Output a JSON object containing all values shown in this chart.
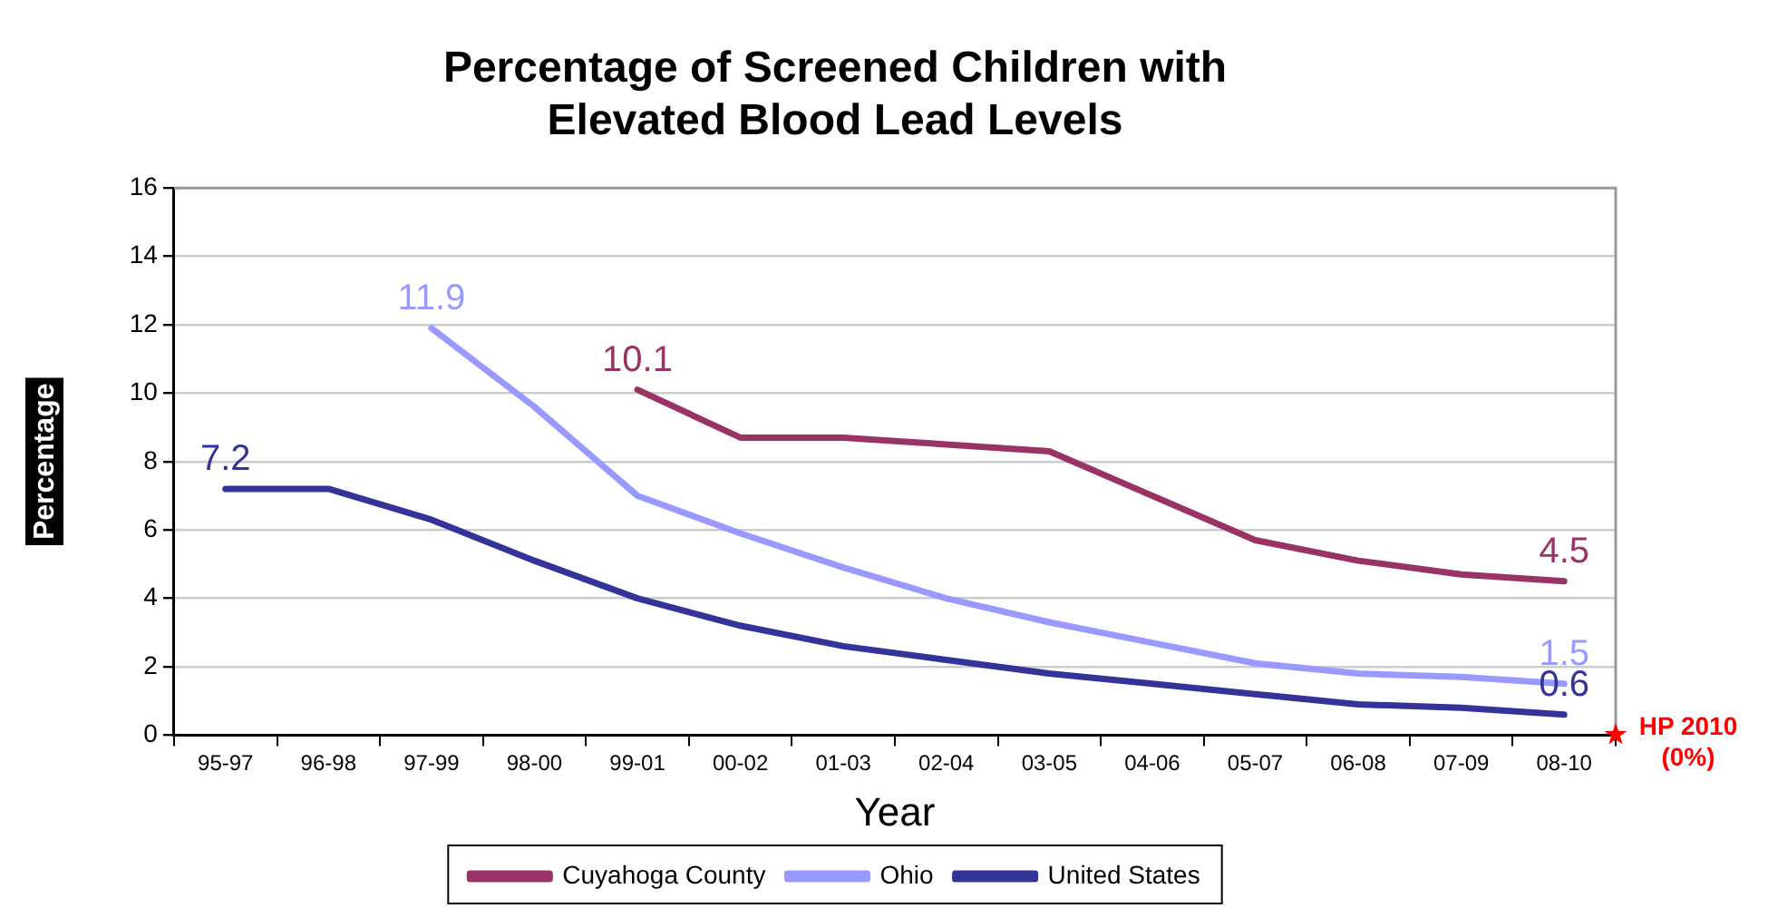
{
  "chart_data": {
    "type": "line",
    "title": "Percentage of Screened Children with\nElevated Blood Lead Levels",
    "xlabel": "Year",
    "ylabel": "Percentage",
    "categories": [
      "95-97",
      "96-98",
      "97-99",
      "98-00",
      "99-01",
      "00-02",
      "01-03",
      "02-04",
      "03-05",
      "04-06",
      "05-07",
      "06-08",
      "07-09",
      "08-10"
    ],
    "series": [
      {
        "name": "Cuyahoga County",
        "color": "#993366",
        "values": [
          null,
          null,
          null,
          null,
          10.1,
          8.7,
          8.7,
          8.5,
          8.3,
          7.0,
          5.7,
          5.1,
          4.7,
          4.5
        ],
        "value_labels": [
          null,
          null,
          null,
          null,
          "10.1",
          null,
          null,
          null,
          null,
          null,
          null,
          null,
          null,
          "4.5"
        ]
      },
      {
        "name": "Ohio",
        "color": "#9999ff",
        "values": [
          null,
          null,
          11.9,
          9.6,
          7.0,
          5.9,
          4.9,
          4.0,
          3.3,
          2.7,
          2.1,
          1.8,
          1.7,
          1.5
        ],
        "value_labels": [
          null,
          null,
          "11.9",
          null,
          null,
          null,
          null,
          null,
          null,
          null,
          null,
          null,
          null,
          "1.5"
        ]
      },
      {
        "name": "United States",
        "color": "#333399",
        "values": [
          7.2,
          7.2,
          6.3,
          5.1,
          4.0,
          3.2,
          2.6,
          2.2,
          1.8,
          1.5,
          1.2,
          0.9,
          0.8,
          0.6
        ],
        "value_labels": [
          "7.2",
          null,
          null,
          null,
          null,
          null,
          null,
          null,
          null,
          null,
          null,
          null,
          null,
          "0.6"
        ]
      }
    ],
    "ylim": [
      0,
      16
    ],
    "yticks": [
      0,
      2,
      4,
      6,
      8,
      10,
      12,
      14,
      16
    ],
    "grid": "y",
    "legend": "bottom",
    "marker": "none",
    "line_style": "solid",
    "annotations": [
      "HP 2010 (0%)"
    ]
  }
}
